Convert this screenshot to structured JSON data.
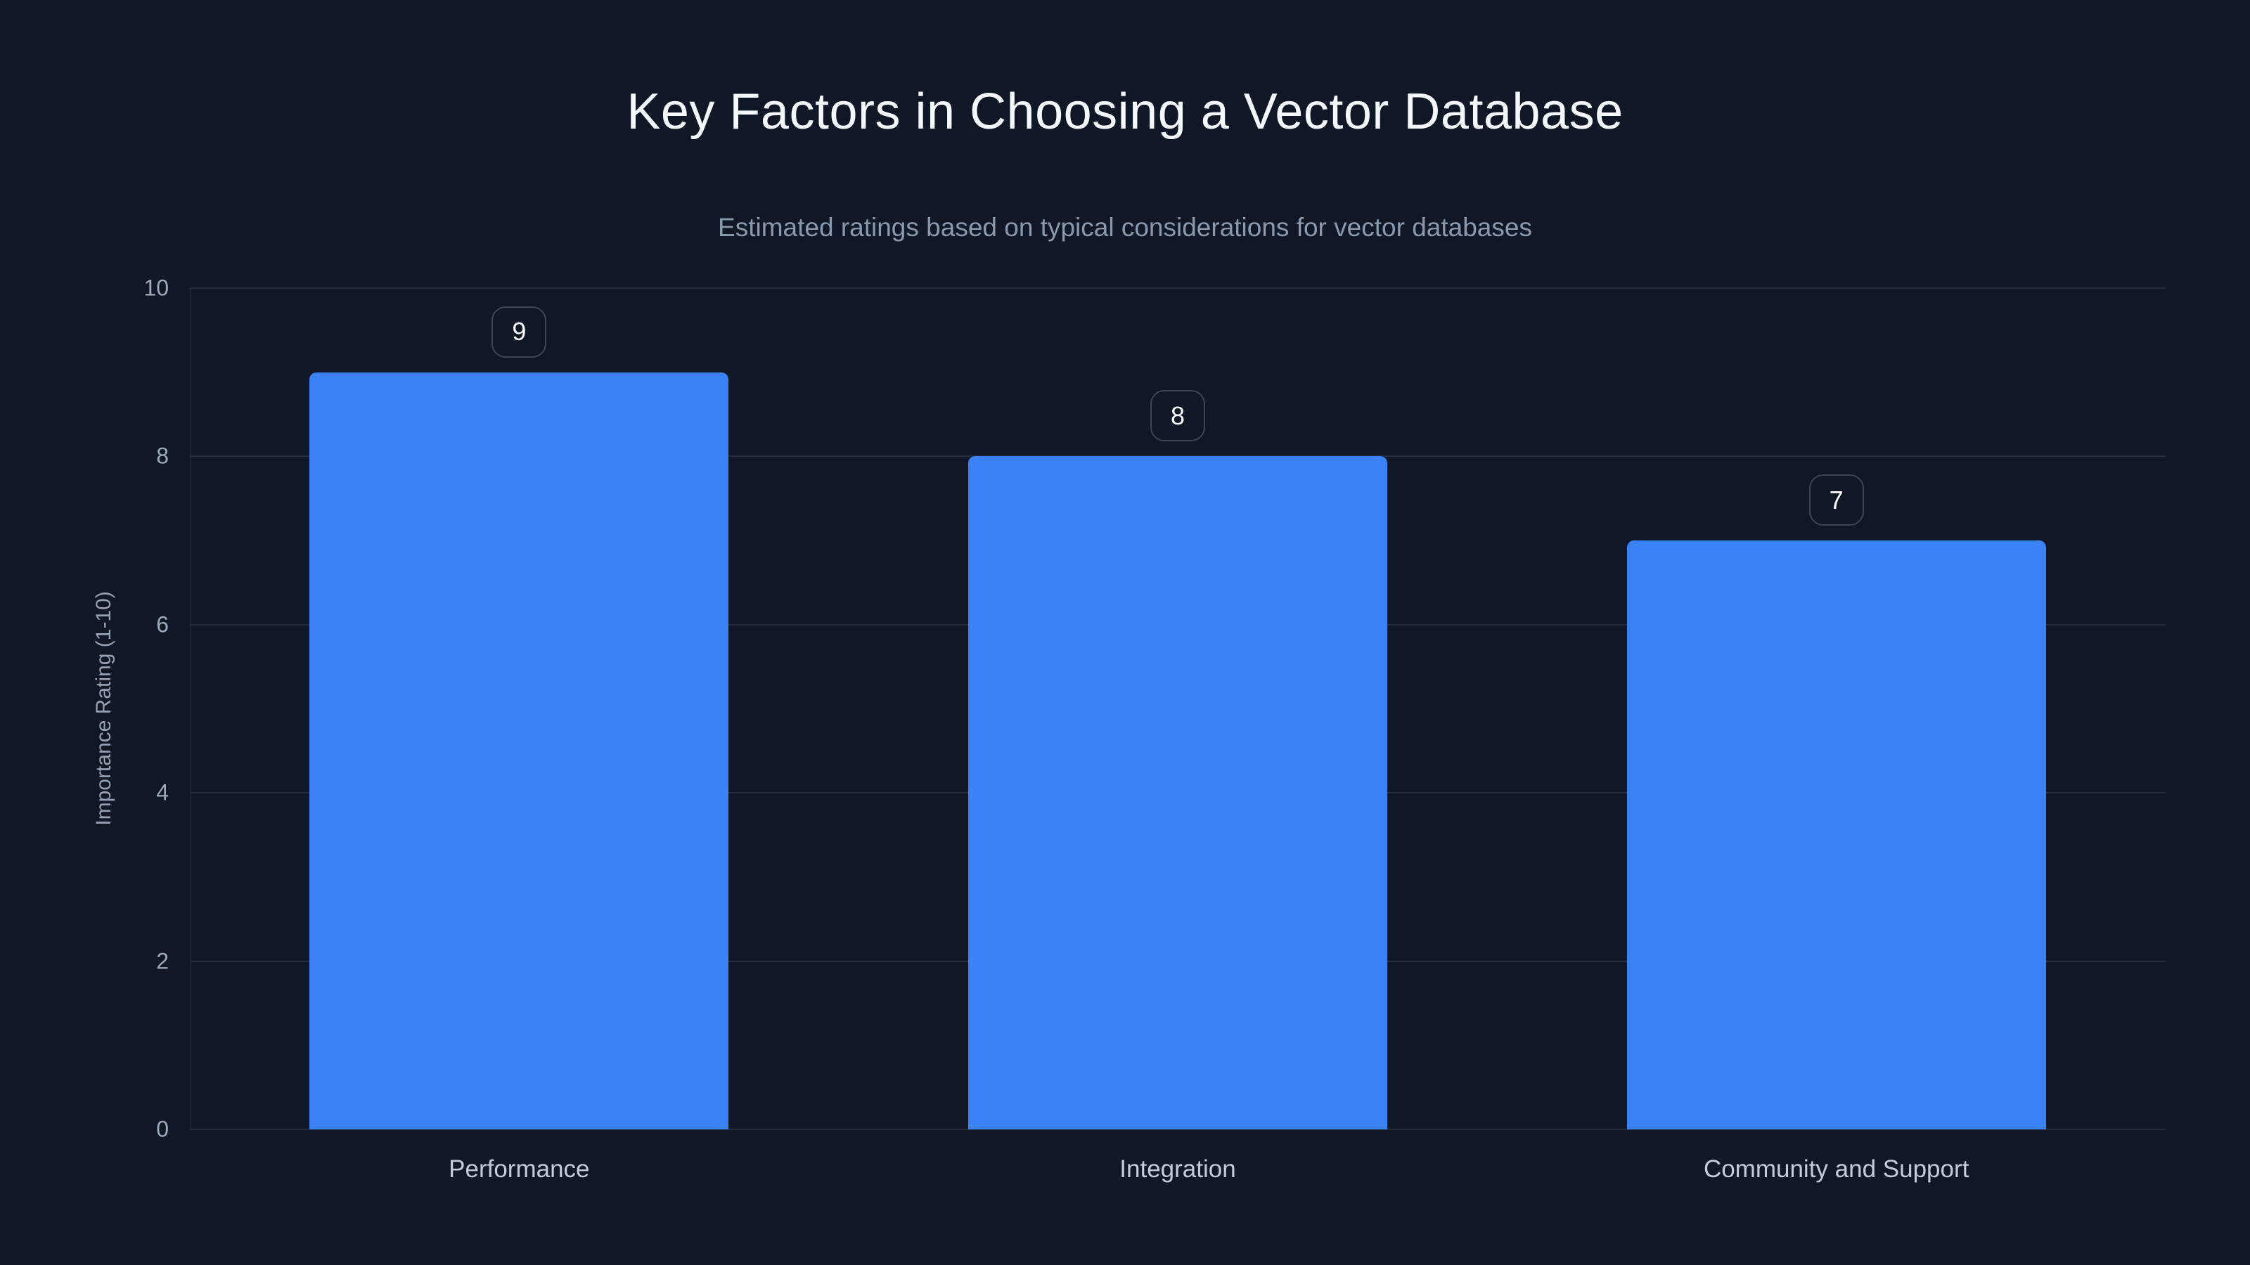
{
  "header": {
    "title": "Key Factors in Choosing a Vector Database",
    "subtitle": "Estimated ratings based on typical considerations for vector databases"
  },
  "chart_data": {
    "type": "bar",
    "title": "Key Factors in Choosing a Vector Database",
    "subtitle": "Estimated ratings based on typical considerations for vector databases",
    "categories": [
      "Performance",
      "Integration",
      "Community and Support"
    ],
    "values": [
      9,
      8,
      7
    ],
    "xlabel": "",
    "ylabel": "Importance Rating (1-10)",
    "ylim": [
      0,
      10
    ],
    "yticks": [
      0,
      2,
      4,
      6,
      8,
      10
    ],
    "grid": true,
    "legend": false,
    "value_labels_shown": true,
    "colors": {
      "bar": "#3b82f6",
      "background": "#101827",
      "gridline": "#222d40",
      "title_text": "#f5f8fc",
      "subtitle_text": "#8b99ae",
      "tick_text": "#9daabd",
      "category_text": "#c3ccd9",
      "badge_border": "#3a4556",
      "badge_text": "#ffffff"
    }
  }
}
